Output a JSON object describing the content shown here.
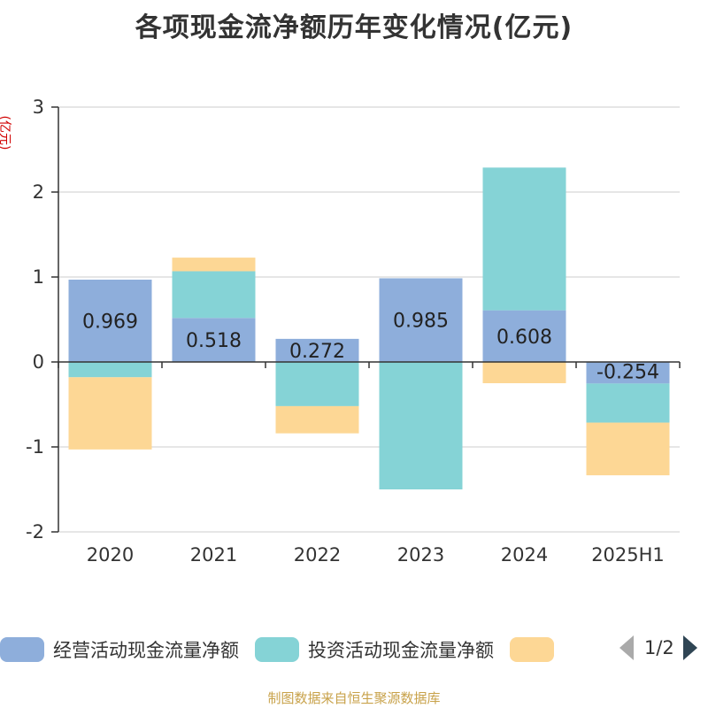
{
  "title": "各项现金流净额历年变化情况(亿元)",
  "unit_label": "(亿元)",
  "footer": "制图数据来自恒生聚源数据库",
  "pager": {
    "text": "1/2"
  },
  "colors": {
    "operating": "#8eaedb",
    "investing": "#85d3d6",
    "financing": "#fdd795",
    "axis": "#333333",
    "grid": "#cccccc"
  },
  "chart_data": {
    "type": "bar",
    "stacked": true,
    "categories": [
      "2020",
      "2021",
      "2022",
      "2023",
      "2024",
      "2025H1"
    ],
    "ylim": [
      -2,
      3
    ],
    "yticks": [
      -2,
      -1,
      0,
      1,
      2,
      3
    ],
    "grid": true,
    "legend_position": "bottom",
    "series": [
      {
        "name": "经营活动现金流量净额",
        "values": [
          0.969,
          0.518,
          0.272,
          0.985,
          0.608,
          -0.254
        ],
        "labels": [
          "0.969",
          "0.518",
          "0.272",
          "0.985",
          "0.608",
          "-0.254"
        ]
      },
      {
        "name": "投资活动现金流量净额",
        "values": [
          -0.18,
          0.55,
          -0.52,
          -1.5,
          1.68,
          -0.46
        ],
        "labels": []
      },
      {
        "name": "",
        "values": [
          -0.85,
          0.16,
          -0.32,
          0.0,
          -0.25,
          -0.62
        ],
        "labels": []
      }
    ]
  }
}
